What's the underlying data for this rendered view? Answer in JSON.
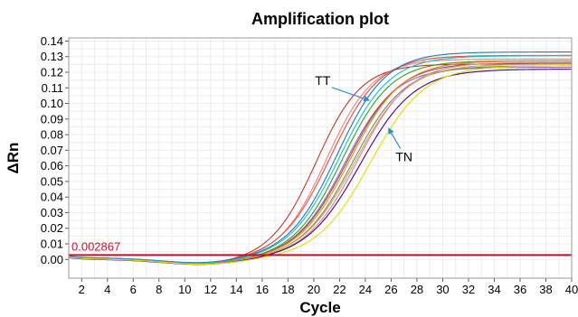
{
  "chart_data": {
    "type": "line",
    "title": "Amplification plot",
    "xlabel": "Cycle",
    "ylabel": "ΔRn",
    "xlim": [
      1,
      40
    ],
    "ylim": [
      -0.012,
      0.142
    ],
    "x_ticks": [
      2,
      4,
      6,
      8,
      10,
      12,
      14,
      16,
      18,
      20,
      22,
      24,
      26,
      28,
      30,
      32,
      34,
      36,
      38,
      40
    ],
    "y_ticks": [
      0.0,
      0.01,
      0.02,
      0.03,
      0.04,
      0.05,
      0.06,
      0.07,
      0.08,
      0.09,
      0.1,
      0.11,
      0.12,
      0.13,
      0.14
    ],
    "grid": true,
    "threshold": {
      "value": 0.002867,
      "label": "0.002867",
      "color": "#c8102e"
    },
    "annotations": [
      {
        "text": "TT",
        "x": 20.7,
        "y": 0.112,
        "arrow_to": [
          24.3,
          0.102
        ]
      },
      {
        "text": "TN",
        "x": 27.0,
        "y": 0.063,
        "arrow_to": [
          25.8,
          0.084
        ]
      }
    ],
    "series": [
      {
        "color": "#c0392b",
        "params": [
          0.125,
          20.2,
          1.75,
          0.0003
        ]
      },
      {
        "color": "#f08080",
        "params": [
          0.128,
          21.0,
          1.8,
          0.0005
        ]
      },
      {
        "color": "#e74c3c",
        "params": [
          0.13,
          21.3,
          1.9,
          0.0008
        ]
      },
      {
        "color": "#1f77b4",
        "params": [
          0.132,
          21.8,
          1.9,
          0.001
        ]
      },
      {
        "color": "#17becf",
        "params": [
          0.13,
          22.0,
          1.95,
          0.0006
        ]
      },
      {
        "color": "#2ca02c",
        "params": [
          0.127,
          22.2,
          1.9,
          0.0004
        ]
      },
      {
        "color": "#9467bd",
        "params": [
          0.123,
          22.4,
          1.95,
          0.0002
        ]
      },
      {
        "color": "#8c564b",
        "params": [
          0.126,
          22.6,
          2.0,
          0.0
        ]
      },
      {
        "color": "#ff7f0e",
        "params": [
          0.127,
          22.8,
          2.0,
          0.0003
        ]
      },
      {
        "color": "#7f7f7f",
        "params": [
          0.124,
          23.0,
          2.0,
          0.0001
        ]
      },
      {
        "color": "#bcbd22",
        "params": [
          0.125,
          23.2,
          2.05,
          0.0002
        ]
      },
      {
        "color": "#e377c2",
        "params": [
          0.126,
          23.4,
          2.0,
          0.0004
        ]
      },
      {
        "color": "#4b0082",
        "params": [
          0.122,
          23.6,
          2.1,
          0.0
        ]
      },
      {
        "color": "#dede00",
        "params": [
          0.124,
          24.4,
          2.1,
          0.0002
        ]
      }
    ]
  }
}
